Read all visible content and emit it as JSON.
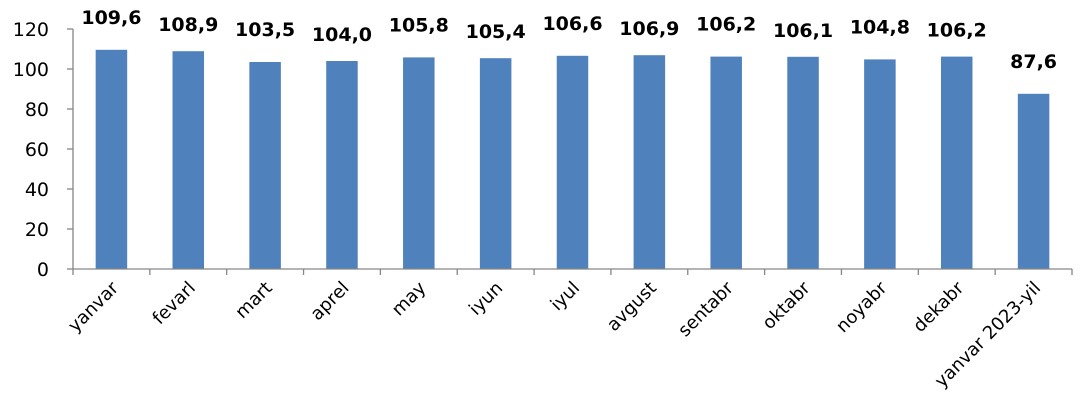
{
  "colors": {
    "bar": "#4f81bd",
    "axis": "#868686",
    "text": "#000000"
  },
  "chart_data": {
    "type": "bar",
    "title": "",
    "xlabel": "",
    "ylabel": "",
    "ylim": [
      0,
      120
    ],
    "yticks": [
      0,
      20,
      40,
      60,
      80,
      100,
      120
    ],
    "grid": false,
    "legend": "none",
    "categories": [
      "yanvar",
      "fevarl",
      "mart",
      "aprel",
      "may",
      "iyun",
      "iyul",
      "avgust",
      "sentabr",
      "oktabr",
      "noyabr",
      "dekabr",
      "yanvar 2023-yil"
    ],
    "values": [
      109.6,
      108.9,
      103.5,
      104.0,
      105.8,
      105.4,
      106.6,
      106.9,
      106.2,
      106.1,
      104.8,
      106.2,
      87.6
    ],
    "data_labels": [
      "109,6",
      "108,9",
      "103,5",
      "104,0",
      "105,8",
      "105,4",
      "106,6",
      "106,9",
      "106,2",
      "106,1",
      "104,8",
      "106,2",
      "87,6"
    ]
  }
}
